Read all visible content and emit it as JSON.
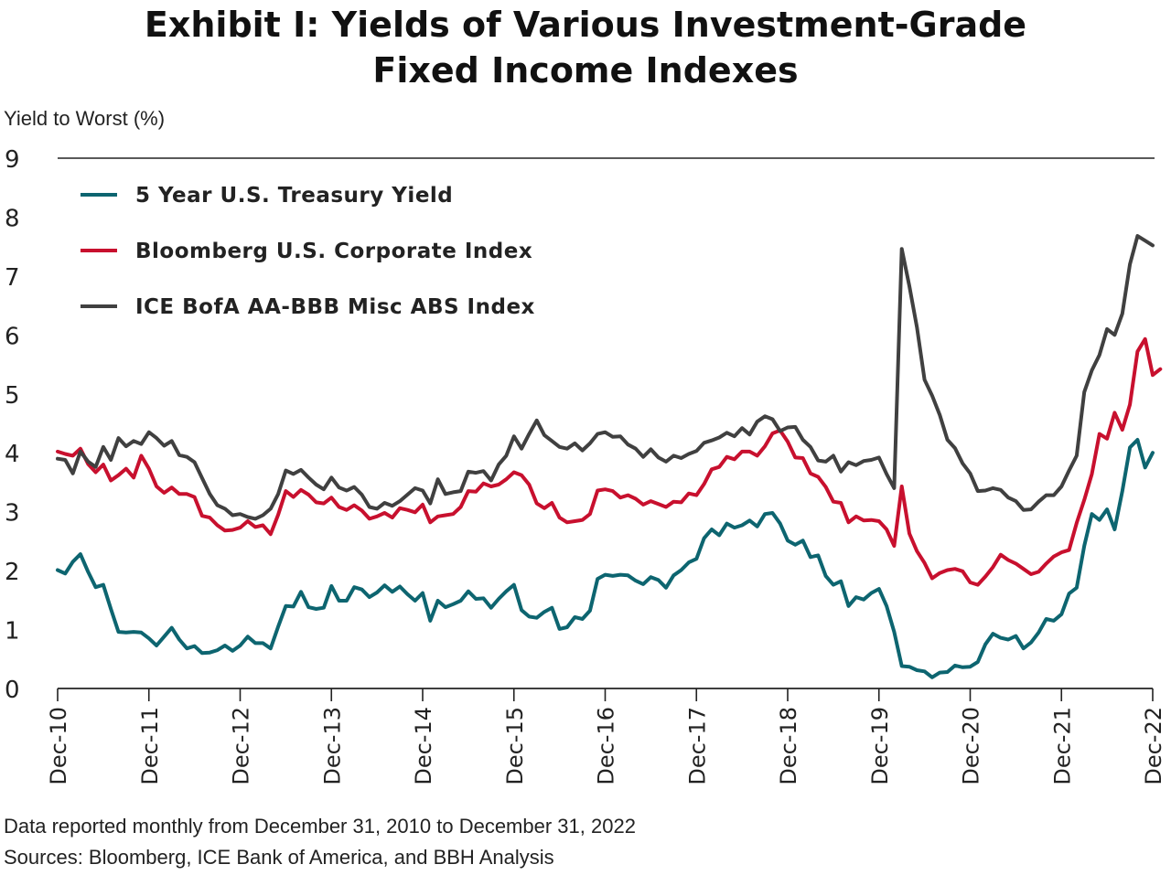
{
  "title_line1": "Exhibit I: Yields of Various Investment-Grade",
  "title_line2": "Fixed Income Indexes",
  "notes": [
    "Data reported monthly from December 31, 2010 to December 31, 2022",
    "Sources: Bloomberg, ICE Bank of America, and BBH Analysis"
  ],
  "chart_data": {
    "type": "line",
    "title": "Exhibit I: Yields of Various Investment-Grade Fixed Income Indexes",
    "xlabel": "",
    "ylabel": "Yield to Worst (%)",
    "ylim": [
      0,
      9
    ],
    "yticks": [
      "0",
      "1",
      "2",
      "3",
      "4",
      "5",
      "6",
      "7",
      "8",
      "9"
    ],
    "xlim": [
      0,
      144
    ],
    "x_tick_labels": [
      "Dec-10",
      "Dec-11",
      "Dec-12",
      "Dec-13",
      "Dec-14",
      "Dec-15",
      "Dec-16",
      "Dec-17",
      "Dec-18",
      "Dec-19",
      "Dec-20",
      "Dec-21",
      "Dec-22"
    ],
    "x_tick_months": [
      0,
      12,
      24,
      36,
      48,
      60,
      72,
      84,
      96,
      108,
      120,
      132,
      144
    ],
    "grid": "top line at 9 only",
    "legend_position": "top-left",
    "series": [
      {
        "name": "5 Year U.S. Treasury Yield",
        "color": "#0d6570",
        "values": [
          2.01,
          1.95,
          2.15,
          2.28,
          1.98,
          1.72,
          1.76,
          1.35,
          0.96,
          0.95,
          0.96,
          0.95,
          0.85,
          0.73,
          0.88,
          1.03,
          0.83,
          0.68,
          0.72,
          0.6,
          0.61,
          0.65,
          0.73,
          0.64,
          0.73,
          0.88,
          0.77,
          0.77,
          0.68,
          1.05,
          1.4,
          1.39,
          1.64,
          1.38,
          1.35,
          1.37,
          1.74,
          1.49,
          1.49,
          1.72,
          1.68,
          1.55,
          1.63,
          1.75,
          1.64,
          1.73,
          1.6,
          1.49,
          1.62,
          1.15,
          1.49,
          1.38,
          1.43,
          1.49,
          1.65,
          1.52,
          1.53,
          1.37,
          1.52,
          1.65,
          1.76,
          1.33,
          1.22,
          1.2,
          1.3,
          1.37,
          1.01,
          1.04,
          1.21,
          1.18,
          1.32,
          1.86,
          1.93,
          1.91,
          1.93,
          1.92,
          1.83,
          1.77,
          1.89,
          1.84,
          1.71,
          1.92,
          2.01,
          2.14,
          2.2,
          2.55,
          2.7,
          2.6,
          2.8,
          2.73,
          2.77,
          2.85,
          2.75,
          2.96,
          2.98,
          2.8,
          2.51,
          2.44,
          2.51,
          2.23,
          2.26,
          1.91,
          1.76,
          1.82,
          1.4,
          1.55,
          1.51,
          1.62,
          1.69,
          1.4,
          0.96,
          0.38,
          0.37,
          0.31,
          0.29,
          0.19,
          0.27,
          0.28,
          0.39,
          0.36,
          0.37,
          0.45,
          0.75,
          0.93,
          0.86,
          0.83,
          0.89,
          0.68,
          0.78,
          0.95,
          1.18,
          1.15,
          1.26,
          1.61,
          1.71,
          2.42,
          2.96,
          2.86,
          3.04,
          2.7,
          3.35,
          4.09,
          4.22,
          3.75,
          4.0
        ]
      },
      {
        "name": "Bloomberg U.S. Corporate Index",
        "color": "#c8102e",
        "values": [
          4.02,
          3.98,
          3.95,
          4.07,
          3.81,
          3.67,
          3.8,
          3.53,
          3.62,
          3.73,
          3.58,
          3.95,
          3.73,
          3.43,
          3.32,
          3.41,
          3.3,
          3.3,
          3.25,
          2.93,
          2.9,
          2.77,
          2.68,
          2.69,
          2.73,
          2.84,
          2.74,
          2.77,
          2.62,
          2.95,
          3.35,
          3.25,
          3.37,
          3.29,
          3.16,
          3.14,
          3.24,
          3.08,
          3.03,
          3.11,
          3.02,
          2.88,
          2.92,
          2.98,
          2.9,
          3.06,
          3.03,
          2.99,
          3.12,
          2.82,
          2.92,
          2.94,
          2.96,
          3.08,
          3.35,
          3.34,
          3.48,
          3.43,
          3.46,
          3.55,
          3.67,
          3.62,
          3.46,
          3.14,
          3.06,
          3.15,
          2.9,
          2.82,
          2.84,
          2.86,
          2.96,
          3.36,
          3.38,
          3.35,
          3.24,
          3.28,
          3.22,
          3.12,
          3.18,
          3.13,
          3.08,
          3.17,
          3.16,
          3.31,
          3.28,
          3.47,
          3.72,
          3.76,
          3.93,
          3.89,
          4.02,
          4.02,
          3.95,
          4.11,
          4.33,
          4.38,
          4.19,
          3.92,
          3.91,
          3.65,
          3.59,
          3.42,
          3.17,
          3.15,
          2.82,
          2.92,
          2.85,
          2.86,
          2.84,
          2.7,
          2.42,
          3.43,
          2.63,
          2.33,
          2.13,
          1.87,
          1.96,
          2.01,
          2.03,
          1.99,
          1.8,
          1.76,
          1.9,
          2.06,
          2.27,
          2.18,
          2.12,
          2.03,
          1.94,
          1.98,
          2.12,
          2.24,
          2.31,
          2.35,
          2.81,
          3.2,
          3.64,
          4.32,
          4.24,
          4.68,
          4.39,
          4.82,
          5.72,
          5.93,
          5.32,
          5.42
        ]
      },
      {
        "name": "ICE BofA AA-BBB Misc ABS Index",
        "color": "#404040",
        "values": [
          3.9,
          3.88,
          3.65,
          4.02,
          3.85,
          3.76,
          4.1,
          3.88,
          4.25,
          4.11,
          4.2,
          4.15,
          4.35,
          4.25,
          4.12,
          4.2,
          3.96,
          3.93,
          3.84,
          3.57,
          3.3,
          3.11,
          3.05,
          2.94,
          2.96,
          2.91,
          2.88,
          2.94,
          3.05,
          3.3,
          3.7,
          3.64,
          3.71,
          3.58,
          3.46,
          3.38,
          3.58,
          3.41,
          3.36,
          3.42,
          3.29,
          3.08,
          3.05,
          3.15,
          3.1,
          3.18,
          3.29,
          3.4,
          3.36,
          3.14,
          3.55,
          3.3,
          3.33,
          3.35,
          3.68,
          3.66,
          3.69,
          3.53,
          3.8,
          3.95,
          4.28,
          4.07,
          4.32,
          4.55,
          4.3,
          4.2,
          4.1,
          4.07,
          4.16,
          4.04,
          4.16,
          4.32,
          4.35,
          4.27,
          4.28,
          4.14,
          4.07,
          3.93,
          4.06,
          3.92,
          3.85,
          3.95,
          3.91,
          3.98,
          4.03,
          4.17,
          4.21,
          4.26,
          4.34,
          4.28,
          4.42,
          4.31,
          4.53,
          4.62,
          4.57,
          4.37,
          4.43,
          4.44,
          4.22,
          4.1,
          3.87,
          3.85,
          3.95,
          3.68,
          3.84,
          3.79,
          3.86,
          3.88,
          3.92,
          3.64,
          3.4,
          7.46,
          6.83,
          6.13,
          5.24,
          4.97,
          4.64,
          4.22,
          4.08,
          3.82,
          3.65,
          3.35,
          3.36,
          3.4,
          3.37,
          3.24,
          3.18,
          3.03,
          3.04,
          3.17,
          3.28,
          3.28,
          3.43,
          3.7,
          3.95,
          5.03,
          5.4,
          5.66,
          6.1,
          6.0,
          6.36,
          7.2,
          7.68,
          7.6,
          7.52
        ]
      }
    ]
  }
}
